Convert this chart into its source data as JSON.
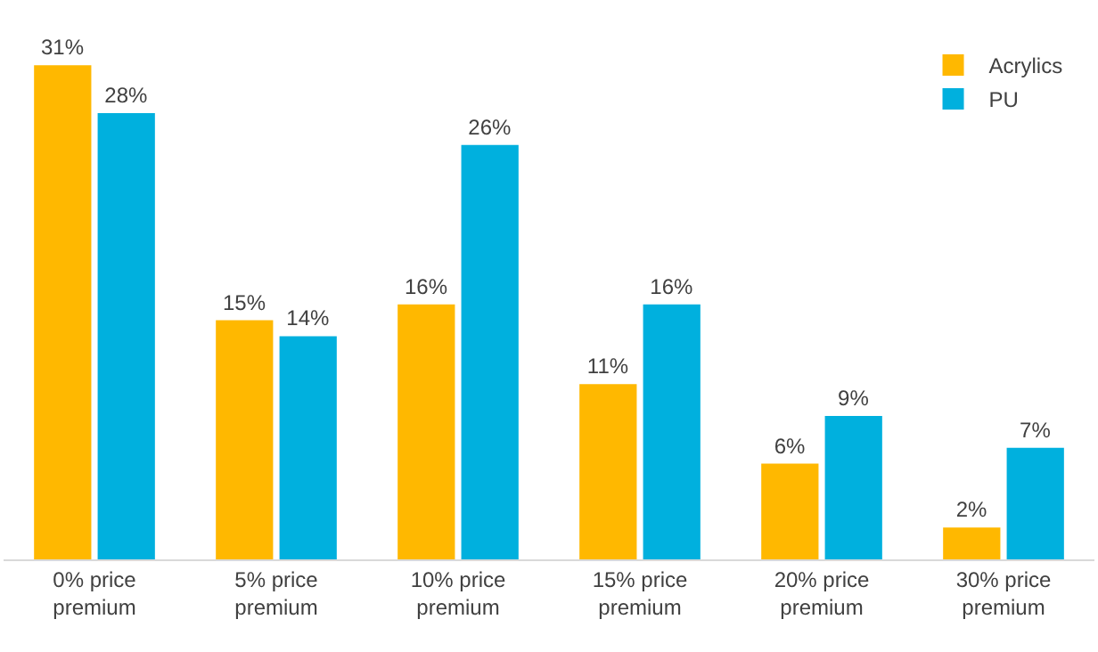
{
  "chart_data": {
    "type": "bar",
    "categories": [
      "0% price premium",
      "5% price premium",
      "10% price premium",
      "15% price premium",
      "20% price premium",
      "30% price premium"
    ],
    "series": [
      {
        "name": "Acrylics",
        "color": "#ffb800",
        "values": [
          31,
          15,
          16,
          11,
          6,
          2
        ],
        "value_labels": [
          "31%",
          "15%",
          "16%",
          "11%",
          "6%",
          "2%"
        ]
      },
      {
        "name": "PU",
        "color": "#00b0de",
        "values": [
          28,
          14,
          26,
          16,
          9,
          7
        ],
        "value_labels": [
          "28%",
          "14%",
          "26%",
          "16%",
          "9%",
          "7%"
        ]
      }
    ],
    "legend": "top right",
    "grid": false
  }
}
